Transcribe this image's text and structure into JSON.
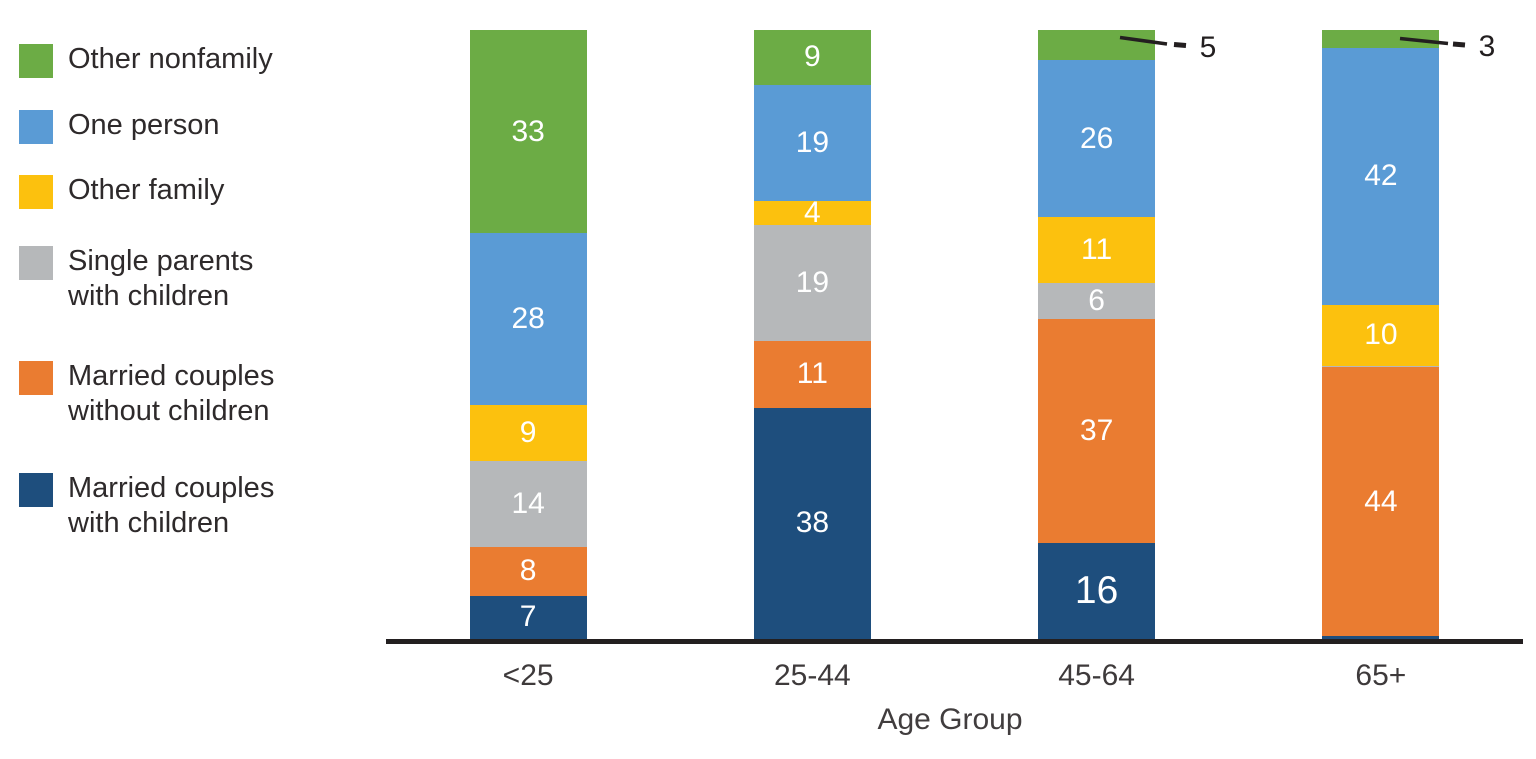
{
  "chart_data": {
    "type": "bar",
    "stacked": true,
    "title": "",
    "xlabel": "Age Group",
    "ylabel": "",
    "unit": "percent",
    "grid": false,
    "legend_position": "left",
    "categories": [
      "<25",
      "25-44",
      "45-64",
      "65+"
    ],
    "series": [
      {
        "name": "Married couples with children",
        "color": "#1e4e7d",
        "values": [
          7,
          38,
          16,
          0.5
        ],
        "labels": [
          "7",
          "38",
          "16",
          ""
        ]
      },
      {
        "name": "Married couples without children",
        "color": "#ea7c31",
        "values": [
          8,
          11,
          37,
          44
        ],
        "labels": [
          "8",
          "11",
          "37",
          "44"
        ]
      },
      {
        "name": "Single parents with children",
        "color": "#b6b8ba",
        "values": [
          14,
          19,
          6,
          0.3
        ],
        "labels": [
          "14",
          "19",
          "6",
          ""
        ]
      },
      {
        "name": "Other family",
        "color": "#fcc10e",
        "values": [
          9,
          4,
          11,
          10
        ],
        "labels": [
          "9",
          "4",
          "11",
          "10"
        ]
      },
      {
        "name": "One person",
        "color": "#5a9bd5",
        "values": [
          28,
          19,
          26,
          42
        ],
        "labels": [
          "28",
          "19",
          "26",
          "42"
        ]
      },
      {
        "name": "Other nonfamily",
        "color": "#6cac45",
        "values": [
          33,
          9,
          5,
          3
        ],
        "labels": [
          "33",
          "9",
          "",
          ""
        ]
      }
    ],
    "callouts": [
      {
        "text": "5",
        "category": "45-64",
        "series": "Other nonfamily"
      },
      {
        "text": "3",
        "category": "65+",
        "series": "Other nonfamily"
      }
    ],
    "emphasized_label": {
      "category": "45-64",
      "series": "Married couples with children"
    }
  },
  "legend": {
    "items": [
      {
        "label": "Other nonfamily",
        "lines": [
          "Other nonfamily"
        ],
        "color": "#6cac45"
      },
      {
        "label": "One person",
        "lines": [
          "One person"
        ],
        "color": "#5a9bd5"
      },
      {
        "label": "Other family",
        "lines": [
          "Other family"
        ],
        "color": "#fcc10e"
      },
      {
        "label": "Single parents with children",
        "lines": [
          "Single parents",
          "with children"
        ],
        "color": "#b6b8ba"
      },
      {
        "label": "Married couples without children",
        "lines": [
          "Married couples",
          "without children"
        ],
        "color": "#ea7c31"
      },
      {
        "label": "Married couples with children",
        "lines": [
          "Married couples",
          "with children"
        ],
        "color": "#1e4e7d"
      }
    ]
  },
  "axis": {
    "x_ticks": [
      "<25",
      "25-44",
      "45-64",
      "65+"
    ],
    "x_title": "Age Group",
    "line_color": "#231f20"
  }
}
